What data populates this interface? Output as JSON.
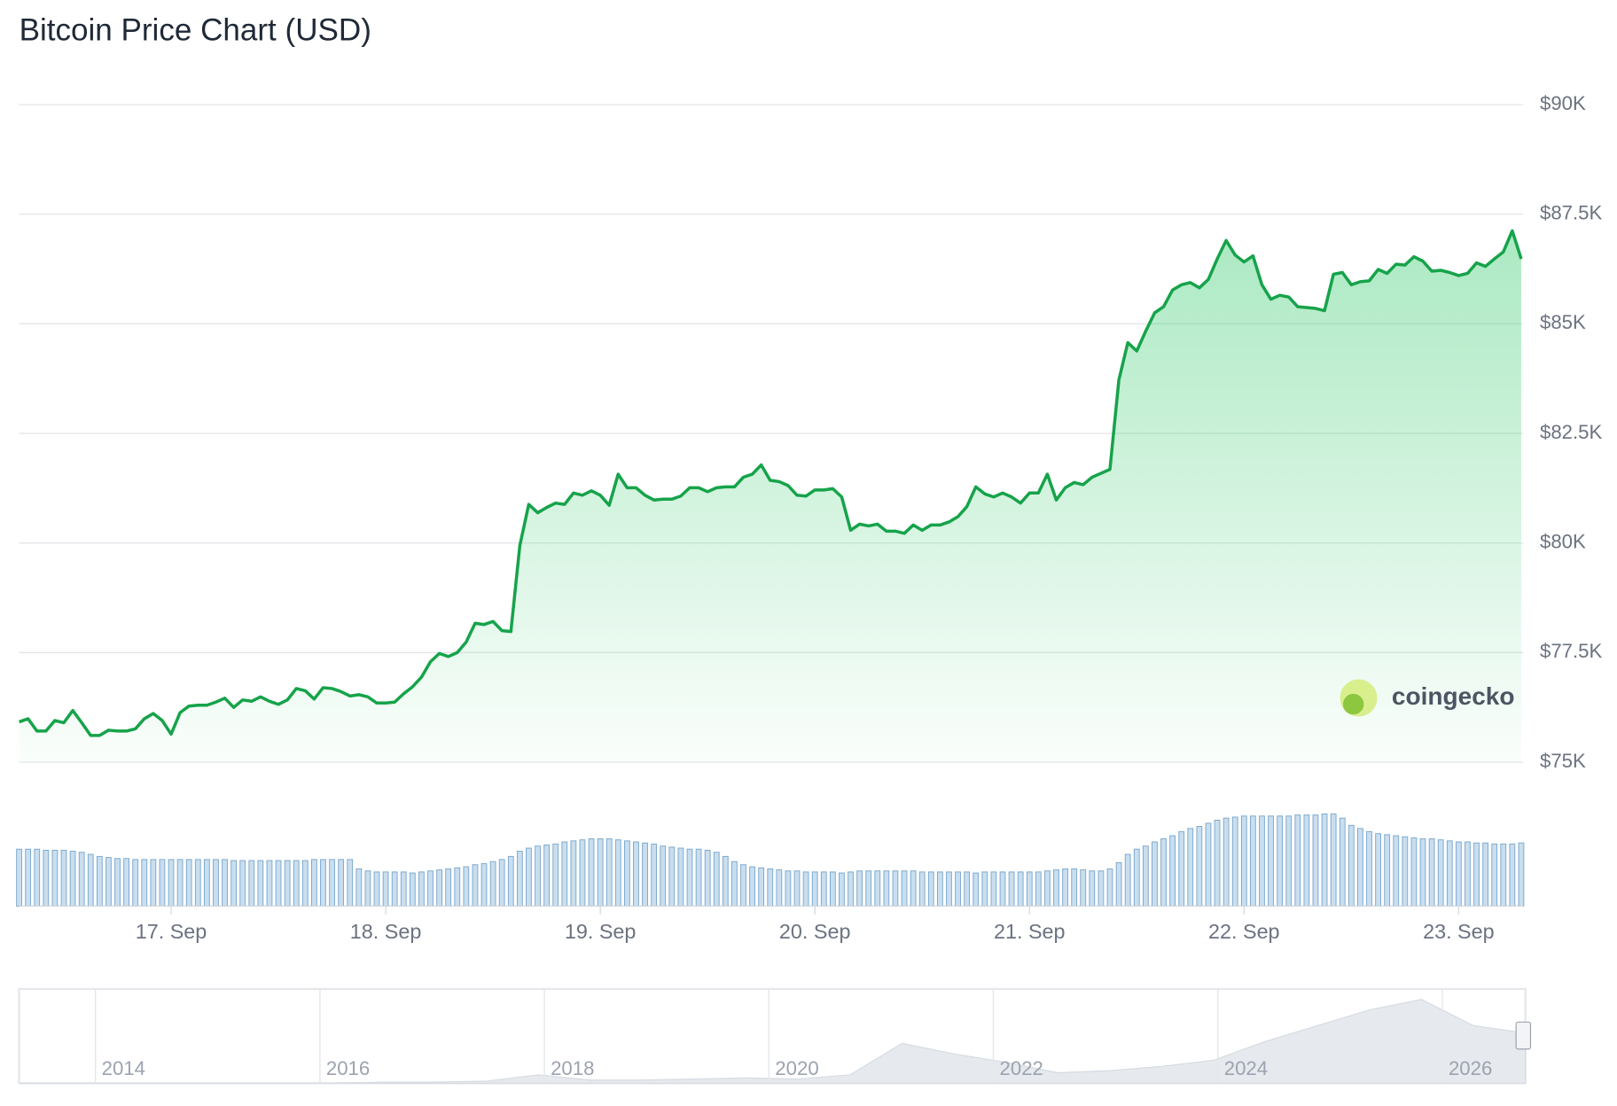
{
  "chart_data": {
    "type": "line",
    "title": "Bitcoin Price Chart (USD)",
    "categories": [
      null,
      null,
      null,
      null,
      null,
      null,
      null,
      null,
      null,
      null,
      null,
      null,
      null,
      null,
      null,
      null,
      null,
      "17. Sep",
      null,
      null,
      null,
      null,
      null,
      null,
      null,
      null,
      null,
      null,
      null,
      null,
      null,
      null,
      null,
      null,
      null,
      null,
      null,
      null,
      null,
      null,
      null,
      "18. Sep",
      null,
      null,
      null,
      null,
      null,
      null,
      null,
      null,
      null,
      null,
      null,
      null,
      null,
      null,
      null,
      null,
      null,
      null,
      null,
      null,
      null,
      null,
      null,
      "19. Sep",
      null,
      null,
      null,
      null,
      null,
      null,
      null,
      null,
      null,
      null,
      null,
      null,
      null,
      null,
      null,
      null,
      null,
      null,
      null,
      null,
      null,
      null,
      null,
      "20. Sep",
      null,
      null,
      null,
      null,
      null,
      null,
      null,
      null,
      null,
      null,
      null,
      null,
      null,
      null,
      null,
      null,
      null,
      null,
      null,
      null,
      null,
      null,
      null,
      "21. Sep",
      null,
      null,
      null,
      null,
      null,
      null,
      null,
      null,
      null,
      null,
      null,
      null,
      null,
      null,
      null,
      null,
      null,
      null,
      null,
      null,
      null,
      null,
      null,
      "22. Sep",
      null,
      null,
      null,
      null,
      null,
      null,
      null,
      null,
      null,
      null,
      null,
      null,
      null,
      null,
      null,
      null,
      null,
      null,
      null,
      null,
      null,
      null,
      null,
      "23. Sep",
      null,
      null,
      null,
      null,
      null,
      null,
      null
    ],
    "values": [
      75920,
      75990,
      75710,
      75710,
      75950,
      75900,
      76180,
      75900,
      75610,
      75610,
      75730,
      75710,
      75710,
      75760,
      75990,
      76110,
      75950,
      75640,
      76130,
      76280,
      76300,
      76300,
      76370,
      76460,
      76250,
      76420,
      76390,
      76490,
      76390,
      76320,
      76420,
      76680,
      76630,
      76440,
      76700,
      76680,
      76610,
      76510,
      76540,
      76490,
      76350,
      76350,
      76370,
      76560,
      76720,
      76940,
      77290,
      77480,
      77410,
      77500,
      77740,
      78170,
      78140,
      78210,
      78000,
      77980,
      79940,
      80880,
      80690,
      80810,
      80910,
      80880,
      81140,
      81090,
      81190,
      81090,
      80860,
      81570,
      81260,
      81260,
      81090,
      80980,
      81000,
      81000,
      81070,
      81260,
      81260,
      81170,
      81260,
      81280,
      81280,
      81500,
      81570,
      81780,
      81430,
      81400,
      81310,
      81090,
      81070,
      81210,
      81210,
      81240,
      81050,
      80290,
      80430,
      80390,
      80430,
      80270,
      80270,
      80220,
      80410,
      80290,
      80410,
      80410,
      80480,
      80600,
      80830,
      81280,
      81120,
      81050,
      81140,
      81050,
      80910,
      81140,
      81140,
      81570,
      80980,
      81260,
      81380,
      81330,
      81500,
      81590,
      81680,
      83720,
      84570,
      84380,
      84830,
      85250,
      85390,
      85770,
      85890,
      85940,
      85820,
      86010,
      86480,
      86900,
      86570,
      86410,
      86550,
      85890,
      85560,
      85650,
      85610,
      85390,
      85370,
      85350,
      85300,
      86130,
      86170,
      85890,
      85960,
      85980,
      86240,
      86150,
      86360,
      86340,
      86530,
      86430,
      86200,
      86220,
      86170,
      86100,
      86150,
      86390,
      86310,
      86480,
      86640,
      87120,
      86480
    ],
    "color": "#16a34a",
    "ylim": [
      75000,
      90000
    ],
    "yticks": [
      {
        "value": 75000,
        "label": "$75K"
      },
      {
        "value": 77500,
        "label": "$77.5K"
      },
      {
        "value": 80000,
        "label": "$80K"
      },
      {
        "value": 82500,
        "label": "$82.5K"
      },
      {
        "value": 85000,
        "label": "$85K"
      },
      {
        "value": 87500,
        "label": "$87.5K"
      },
      {
        "value": 90000,
        "label": "$90K"
      }
    ],
    "grid": true,
    "volume": {
      "color": "#c9deee",
      "ylim": [
        0,
        90
      ],
      "values": [
        55,
        55,
        55,
        54,
        54,
        54,
        53,
        52,
        50,
        48,
        47,
        46,
        46,
        45,
        45,
        45,
        45,
        45,
        45,
        45,
        45,
        45,
        45,
        45,
        44,
        44,
        44,
        44,
        44,
        44,
        44,
        44,
        44,
        45,
        45,
        45,
        45,
        45,
        36,
        34,
        33,
        33,
        33,
        33,
        32,
        33,
        34,
        35,
        36,
        37,
        38,
        40,
        41,
        43,
        45,
        48,
        53,
        56,
        58,
        59,
        60,
        62,
        63,
        64,
        65,
        65,
        65,
        64,
        63,
        62,
        61,
        60,
        58,
        57,
        56,
        55,
        55,
        54,
        52,
        48,
        43,
        40,
        38,
        37,
        36,
        35,
        34,
        34,
        33,
        33,
        33,
        33,
        32,
        33,
        34,
        34,
        34,
        34,
        34,
        34,
        34,
        33,
        33,
        33,
        33,
        33,
        33,
        32,
        33,
        33,
        33,
        33,
        33,
        33,
        33,
        34,
        35,
        36,
        36,
        35,
        34,
        34,
        36,
        42,
        50,
        55,
        58,
        62,
        65,
        68,
        72,
        75,
        77,
        80,
        83,
        85,
        86,
        87,
        87,
        87,
        87,
        87,
        87,
        88,
        88,
        88,
        89,
        89,
        85,
        78,
        75,
        72,
        70,
        69,
        68,
        67,
        66,
        65,
        65,
        64,
        63,
        62,
        62,
        61,
        61,
        60,
        60,
        60,
        61
      ]
    },
    "navigator": {
      "xlim": [
        2013.32,
        2026.74
      ],
      "xticks": [
        2014,
        2016,
        2018,
        2020,
        2022,
        2024,
        2026
      ],
      "ylim": [
        0,
        90
      ],
      "values": [
        0,
        0,
        0,
        0,
        0,
        0,
        0,
        1,
        1,
        2,
        8,
        3,
        3,
        4,
        5,
        4,
        8,
        38,
        28,
        20,
        10,
        12,
        16,
        22,
        40,
        55,
        70,
        80,
        55,
        48
      ]
    },
    "watermark": "coingecko"
  }
}
